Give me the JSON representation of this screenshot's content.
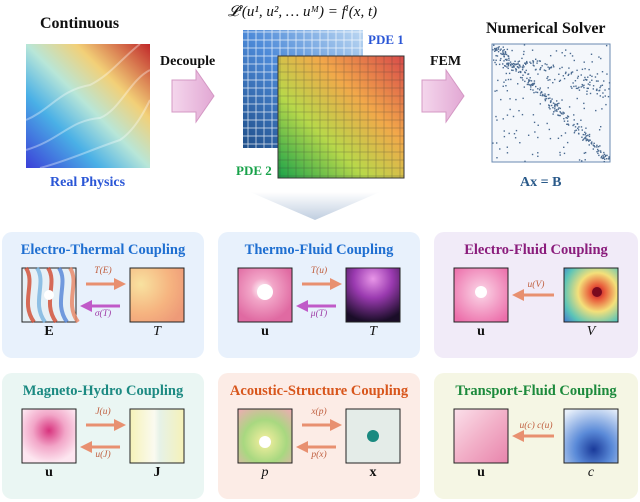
{
  "top": {
    "continuous_title": "Continuous",
    "real_physics": "Real Physics",
    "decouple": "Decouple",
    "equation": "𝓛ⁱ(u¹, u², … uᴹ) = fⁱ(x, t)",
    "pde1": "PDE 1",
    "pde2": "PDE 2",
    "fem": "FEM",
    "numerical_solver": "Numerical Solver",
    "system_eq": "Ax = B"
  },
  "panels": [
    {
      "title": "Electro-Thermal Coupling",
      "title_color": "#1f6fd1",
      "bg": "#e8f1fc",
      "left_var": "E",
      "right_var": "T",
      "top_label": "T(E)",
      "bottom_label": "σ(T)",
      "top_color": "#e89070",
      "bottom_color": "#c05ac8"
    },
    {
      "title": "Thermo-Fluid Coupling",
      "title_color": "#1f6fd1",
      "bg": "#e8f1fc",
      "left_var": "u",
      "right_var": "T",
      "top_label": "T(u)",
      "bottom_label": "μ(T)",
      "top_color": "#e89070",
      "bottom_color": "#c05ac8"
    },
    {
      "title": "Electro-Fluid Coupling",
      "title_color": "#8a1c7c",
      "bg": "#f1ebf8",
      "left_var": "u",
      "right_var": "V",
      "top_label": "",
      "bottom_label": "u(V)",
      "top_color": "",
      "bottom_color": "#e89070"
    },
    {
      "title": "Magneto-Hydro Coupling",
      "title_color": "#1c8a82",
      "bg": "#eaf6f3",
      "left_var": "u",
      "right_var": "J",
      "top_label": "J(u)",
      "bottom_label": "u(J)",
      "top_color": "#e89070",
      "bottom_color": "#e89070"
    },
    {
      "title": "Acoustic-Structure Coupling",
      "title_color": "#d8561c",
      "bg": "#fcece6",
      "left_var": "p",
      "right_var": "x",
      "top_label": "x(p)",
      "bottom_label": "p(x)",
      "top_color": "#e89070",
      "bottom_color": "#e89070"
    },
    {
      "title": "Transport-Fluid Coupling",
      "title_color": "#1c8a3c",
      "bg": "#f5f6e4",
      "left_var": "u",
      "right_var": "c",
      "top_label": "",
      "bottom_label": "u(c)  c(u)",
      "top_color": "",
      "bottom_color": "#e89070"
    }
  ]
}
